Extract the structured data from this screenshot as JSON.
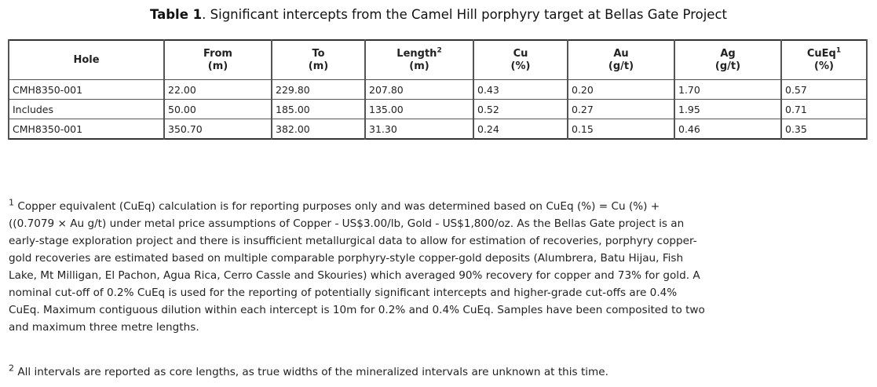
{
  "title": {
    "label": "Table 1",
    "text": ". Significant intercepts from the Camel Hill porphyry target at Bellas Gate Project"
  },
  "table": {
    "headers": [
      {
        "line1": "Hole",
        "line2": "",
        "sup": ""
      },
      {
        "line1": "From",
        "line2": "(m)",
        "sup": ""
      },
      {
        "line1": "To",
        "line2": "(m)",
        "sup": ""
      },
      {
        "line1": "Length",
        "line2": "(m)",
        "sup": "2"
      },
      {
        "line1": "Cu",
        "line2": "(%)",
        "sup": ""
      },
      {
        "line1": "Au",
        "line2": "(g/t)",
        "sup": ""
      },
      {
        "line1": "Ag",
        "line2": "(g/t)",
        "sup": ""
      },
      {
        "line1": "CuEq",
        "line2": "(%)",
        "sup": "1"
      }
    ],
    "rows": [
      [
        "CMH8350-001",
        "22.00",
        "229.80",
        "207.80",
        "0.43",
        "0.20",
        "1.70",
        "0.57"
      ],
      [
        "Includes",
        "50.00",
        "185.00",
        "135.00",
        "0.52",
        "0.27",
        "1.95",
        "0.71"
      ],
      [
        "CMH8350-001",
        "350.70",
        "382.00",
        "31.30",
        "0.24",
        "0.15",
        "0.46",
        "0.35"
      ]
    ]
  },
  "footnotes": [
    {
      "marker": "1",
      "lines": [
        "Copper equivalent (CuEq) calculation is for reporting purposes only and was determined based on CuEq (%) = Cu (%) +",
        "((0.7079 × Au g/t) under metal price assumptions of Copper - US$3.00/lb, Gold - US$1,800/oz. As the Bellas Gate project is an",
        "early-stage exploration project and there is insufficient metallurgical data to allow for estimation of recoveries, porphyry copper-",
        "gold recoveries are estimated based on multiple comparable porphyry-style copper-gold deposits (Alumbrera, Batu Hijau, Fish",
        "Lake, Mt Milligan, El Pachon, Agua Rica, Cerro Cassle and Skouries) which averaged 90% recovery for copper and 73% for gold. A",
        "nominal cut-off of 0.2% CuEq is used for the reporting of potentially significant intercepts and higher-grade cut-offs are 0.4%",
        "CuEq. Maximum contiguous dilution within each intercept is 10m for 0.2% and 0.4% CuEq. Samples have been composited to two",
        "and maximum three metre lengths."
      ]
    },
    {
      "marker": "2",
      "lines": [
        "All intervals are reported as core lengths, as true widths of the mineralized intervals are unknown at this time."
      ]
    }
  ]
}
